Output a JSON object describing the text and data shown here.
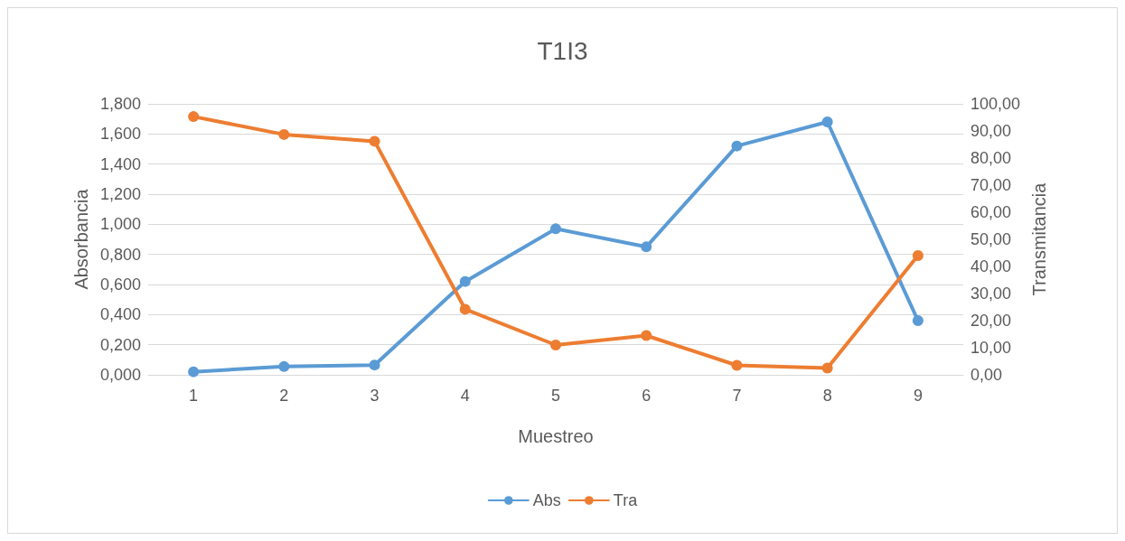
{
  "chart_data": {
    "type": "line",
    "title": "T1I3",
    "xlabel": "Muestreo",
    "ylabel": "Absorbancia",
    "y2label": "Transmitancia",
    "categories": [
      "1",
      "2",
      "3",
      "4",
      "5",
      "6",
      "7",
      "8",
      "9"
    ],
    "series": [
      {
        "name": "Abs",
        "color": "#5b9bd5",
        "values": [
          0.02,
          0.055,
          0.065,
          0.62,
          0.97,
          0.85,
          1.52,
          1.68,
          0.36
        ]
      },
      {
        "name": "Tra",
        "color": "#ed7d31",
        "axis": "y2",
        "values": [
          95.3,
          88.7,
          86.2,
          24.2,
          11.0,
          14.5,
          3.5,
          2.5,
          44.0
        ]
      }
    ],
    "ylim": [
      0,
      1.8
    ],
    "yticks": [
      {
        "value": 0,
        "label": "0,000"
      },
      {
        "value": 0.2,
        "label": "0,200"
      },
      {
        "value": 0.4,
        "label": "0,400"
      },
      {
        "value": 0.6,
        "label": "0,600"
      },
      {
        "value": 0.8,
        "label": "0,800"
      },
      {
        "value": 1.0,
        "label": "1,000"
      },
      {
        "value": 1.2,
        "label": "1,200"
      },
      {
        "value": 1.4,
        "label": "1,400"
      },
      {
        "value": 1.6,
        "label": "1,600"
      },
      {
        "value": 1.8,
        "label": "1,800"
      }
    ],
    "y2lim": [
      0,
      100
    ],
    "y2ticks": [
      {
        "value": 0,
        "label": "0,00"
      },
      {
        "value": 10,
        "label": "10,00"
      },
      {
        "value": 20,
        "label": "20,00"
      },
      {
        "value": 30,
        "label": "30,00"
      },
      {
        "value": 40,
        "label": "40,00"
      },
      {
        "value": 50,
        "label": "50,00"
      },
      {
        "value": 60,
        "label": "60,00"
      },
      {
        "value": 70,
        "label": "70,00"
      },
      {
        "value": 80,
        "label": "80,00"
      },
      {
        "value": 90,
        "label": "90,00"
      },
      {
        "value": 100,
        "label": "100,00"
      }
    ],
    "grid": "y",
    "legend": "bottom",
    "marker": "circle",
    "line_style": "solid"
  }
}
